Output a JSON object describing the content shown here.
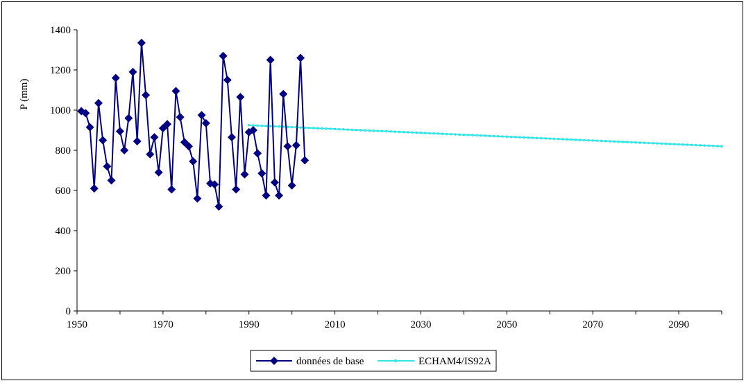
{
  "chart_data": {
    "type": "line",
    "title": "",
    "xlabel": "",
    "ylabel": "P (mm)",
    "xlim": [
      1950,
      2100
    ],
    "ylim": [
      0,
      1400
    ],
    "xticks": [
      1950,
      1970,
      1990,
      2010,
      2030,
      2050,
      2070,
      2090
    ],
    "yticks": [
      0,
      200,
      400,
      600,
      800,
      1000,
      1200,
      1400
    ],
    "grid": false,
    "legend_position": "bottom",
    "series": [
      {
        "name": "données de base",
        "color": "#000080",
        "marker": "diamond",
        "x": [
          1951,
          1952,
          1953,
          1954,
          1955,
          1956,
          1957,
          1958,
          1959,
          1960,
          1961,
          1962,
          1963,
          1964,
          1965,
          1966,
          1967,
          1968,
          1969,
          1970,
          1971,
          1972,
          1973,
          1974,
          1975,
          1976,
          1977,
          1978,
          1979,
          1980,
          1981,
          1982,
          1983,
          1984,
          1985,
          1986,
          1987,
          1988,
          1989,
          1990,
          1991,
          1992,
          1993,
          1994,
          1995,
          1996,
          1997,
          1998,
          1999,
          2000,
          2001,
          2002,
          2003
        ],
        "y": [
          995,
          985,
          915,
          610,
          1035,
          850,
          720,
          650,
          1160,
          895,
          800,
          960,
          1190,
          845,
          1335,
          1075,
          780,
          865,
          690,
          910,
          930,
          605,
          1095,
          965,
          840,
          820,
          745,
          560,
          975,
          935,
          635,
          630,
          520,
          1270,
          1150,
          865,
          605,
          1065,
          680,
          890,
          900,
          785,
          685,
          575,
          1250,
          640,
          575,
          1080,
          820,
          625,
          825,
          1260,
          750
        ]
      },
      {
        "name": "ECHAM4/IS92A",
        "color": "#33E6E6",
        "marker": "dot",
        "x_start": 1990,
        "x_end": 2100,
        "y_start": 925,
        "y_end": 820
      }
    ]
  }
}
